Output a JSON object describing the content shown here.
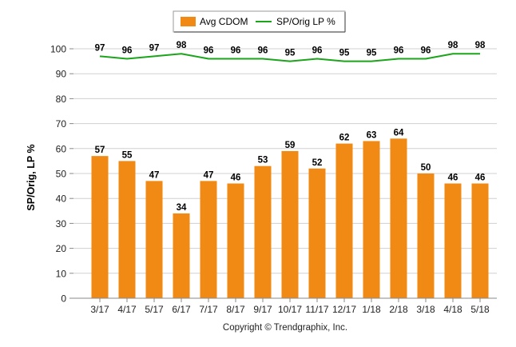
{
  "chart_data": {
    "type": "bar",
    "categories": [
      "3/17",
      "4/17",
      "5/17",
      "6/17",
      "7/17",
      "8/17",
      "9/17",
      "10/17",
      "11/17",
      "12/17",
      "1/18",
      "2/18",
      "3/18",
      "4/18",
      "5/18"
    ],
    "series": [
      {
        "name": "Avg CDOM",
        "type": "bar",
        "color": "#f08a14",
        "values": [
          57,
          55,
          47,
          34,
          47,
          46,
          53,
          59,
          52,
          62,
          63,
          64,
          50,
          46,
          46
        ]
      },
      {
        "name": "SP/Orig LP %",
        "type": "line",
        "color": "#1aa51a",
        "values": [
          97,
          96,
          97,
          98,
          96,
          96,
          96,
          95,
          96,
          95,
          95,
          96,
          96,
          98,
          98
        ]
      }
    ],
    "ylabel": "SP/Orig, LP %",
    "xlabel": "",
    "ylim": [
      0,
      100
    ],
    "yticks": [
      0,
      10,
      20,
      30,
      40,
      50,
      60,
      70,
      80,
      90,
      100
    ],
    "grid": true,
    "legend_position": "top-center"
  },
  "footer": "Copyright © Trendgraphix, Inc."
}
